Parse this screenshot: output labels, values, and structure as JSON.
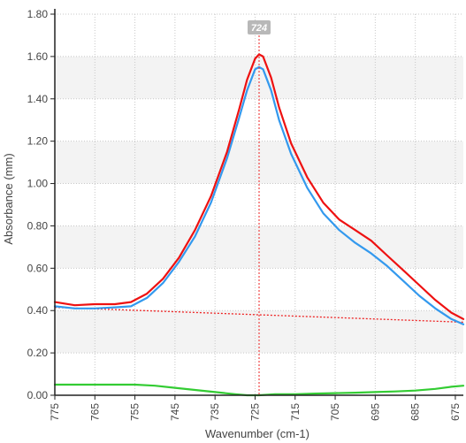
{
  "chart_data": {
    "type": "line",
    "xlabel": "Wavenumber (cm-1)",
    "ylabel": "Absorbance (mm)",
    "x_reversed": true,
    "xlim": [
      775,
      673
    ],
    "ylim": [
      0,
      1.8
    ],
    "x_ticks": [
      "775",
      "765",
      "755",
      "745",
      "735",
      "725",
      "715",
      "705",
      "695",
      "685",
      "675"
    ],
    "y_ticks": [
      "0.00",
      "0.20",
      "0.40",
      "0.60",
      "0.80",
      "1.00",
      "1.20",
      "1.40",
      "1.60",
      "1.80"
    ],
    "grid": true,
    "marker": {
      "x": 724,
      "label": "724",
      "color": "#ee2222"
    },
    "baseline": {
      "x": [
        775,
        673
      ],
      "y": [
        0.415,
        0.345
      ],
      "color": "#ee2222"
    },
    "series": [
      {
        "color": "#ee1111",
        "x": [
          775,
          770,
          765,
          760,
          756,
          752,
          748,
          744,
          740,
          736,
          732,
          729,
          727,
          725,
          724,
          723,
          721,
          719,
          716,
          712,
          708,
          704,
          700,
          696,
          692,
          688,
          684,
          680,
          676,
          673
        ],
        "y": [
          0.44,
          0.425,
          0.43,
          0.43,
          0.44,
          0.48,
          0.55,
          0.65,
          0.78,
          0.94,
          1.15,
          1.35,
          1.49,
          1.59,
          1.61,
          1.6,
          1.5,
          1.36,
          1.19,
          1.03,
          0.91,
          0.83,
          0.78,
          0.73,
          0.66,
          0.59,
          0.52,
          0.45,
          0.39,
          0.36
        ]
      },
      {
        "color": "#3399ee",
        "x": [
          775,
          770,
          765,
          760,
          756,
          752,
          748,
          744,
          740,
          736,
          732,
          729,
          727,
          725,
          724,
          723,
          721,
          719,
          716,
          712,
          708,
          704,
          700,
          696,
          692,
          688,
          684,
          680,
          676,
          673
        ],
        "y": [
          0.42,
          0.41,
          0.41,
          0.415,
          0.42,
          0.46,
          0.53,
          0.63,
          0.75,
          0.91,
          1.12,
          1.31,
          1.44,
          1.54,
          1.55,
          1.54,
          1.44,
          1.3,
          1.14,
          0.98,
          0.86,
          0.78,
          0.72,
          0.67,
          0.61,
          0.54,
          0.47,
          0.41,
          0.36,
          0.335
        ]
      },
      {
        "color": "#33cc33",
        "x": [
          775,
          765,
          755,
          750,
          745,
          740,
          735,
          730,
          727,
          724,
          720,
          715,
          710,
          705,
          700,
          695,
          690,
          685,
          680,
          676,
          673
        ],
        "y": [
          0.05,
          0.05,
          0.05,
          0.045,
          0.035,
          0.025,
          0.015,
          0.005,
          0.0,
          0.0,
          0.005,
          0.005,
          0.008,
          0.01,
          0.012,
          0.015,
          0.018,
          0.022,
          0.03,
          0.04,
          0.045
        ]
      }
    ]
  }
}
